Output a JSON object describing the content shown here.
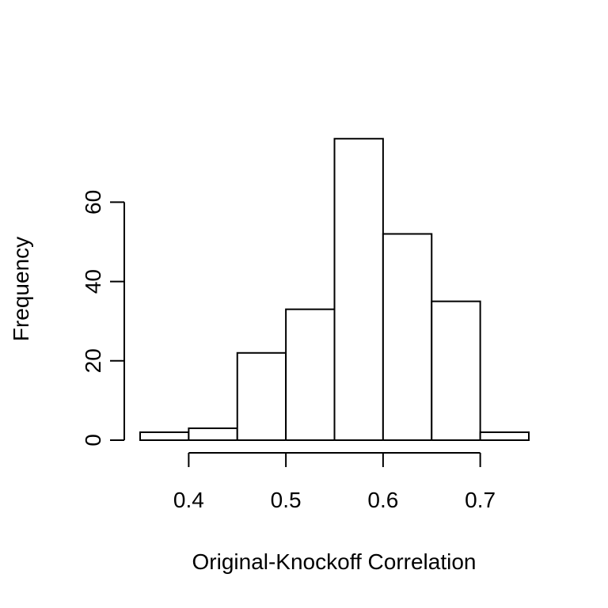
{
  "chart_data": {
    "type": "bar",
    "histogram": true,
    "bin_edges": [
      0.35,
      0.4,
      0.45,
      0.5,
      0.55,
      0.6,
      0.65,
      0.7,
      0.75
    ],
    "values": [
      2,
      3,
      22,
      33,
      76,
      52,
      35,
      2
    ],
    "title": "",
    "xlabel": "Original-Knockoff Correlation",
    "ylabel": "Frequency",
    "xlim": [
      0.35,
      0.75
    ],
    "ylim": [
      0,
      76
    ],
    "x_ticks": [
      0.4,
      0.5,
      0.6,
      0.7
    ],
    "x_tick_labels": [
      "0.4",
      "0.5",
      "0.6",
      "0.7"
    ],
    "y_ticks": [
      0,
      20,
      40,
      60
    ],
    "y_tick_labels": [
      "0",
      "20",
      "40",
      "60"
    ],
    "grid": false,
    "legend": "none",
    "colors": {
      "bar_fill": "#ffffff",
      "bar_stroke": "#000000",
      "axis": "#000000",
      "background": "#ffffff"
    }
  }
}
